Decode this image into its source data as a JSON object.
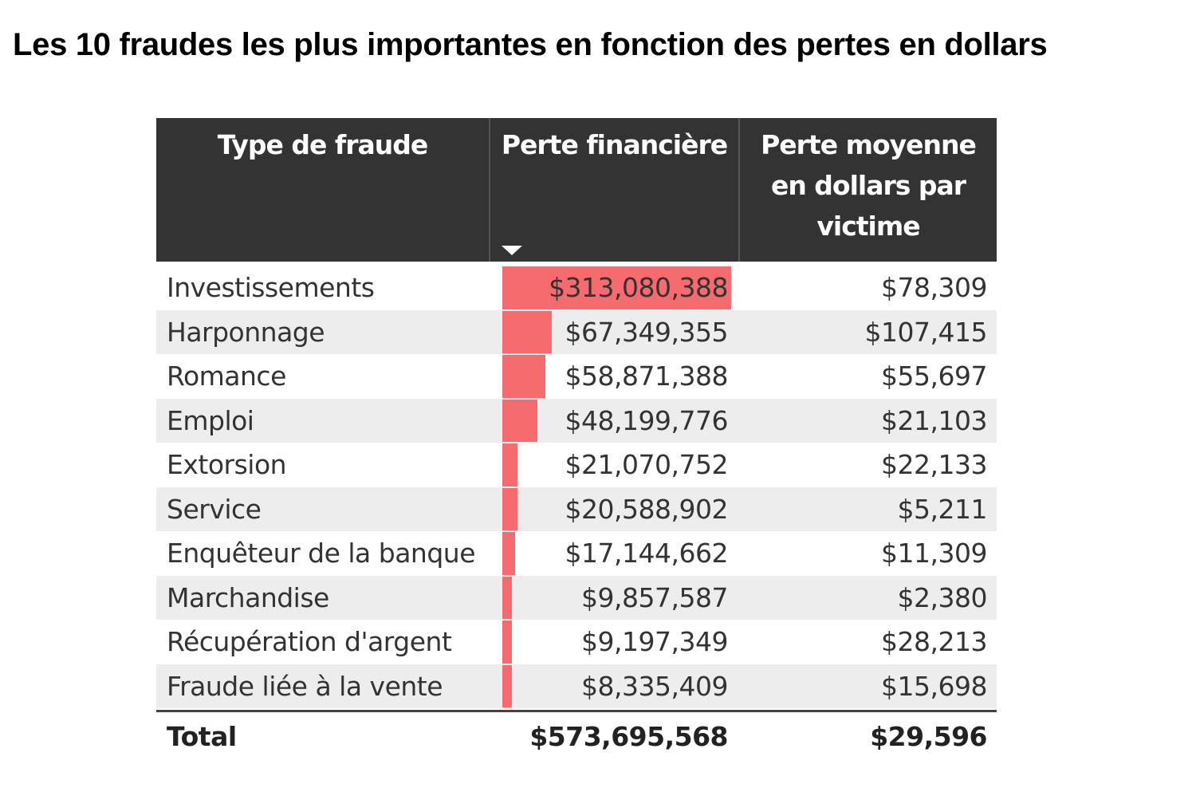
{
  "title": "Les 10 fraudes les plus importantes en fonction des pertes en dollars",
  "chart_data": {
    "type": "table",
    "columns": [
      "Type de fraude",
      "Perte financière",
      "Perte moyenne en dollars par victime"
    ],
    "sort": {
      "column": "Perte financière",
      "direction": "descending"
    },
    "bar_color": "#f66b6e",
    "header_color": "#333333",
    "rows": [
      {
        "type": "Investissements",
        "loss": 313080388,
        "loss_label": "$313,080,388",
        "avg_label": "$78,309"
      },
      {
        "type": "Harponnage",
        "loss": 67349355,
        "loss_label": "$67,349,355",
        "avg_label": "$107,415"
      },
      {
        "type": "Romance",
        "loss": 58871388,
        "loss_label": "$58,871,388",
        "avg_label": "$55,697"
      },
      {
        "type": "Emploi",
        "loss": 48199776,
        "loss_label": "$48,199,776",
        "avg_label": "$21,103"
      },
      {
        "type": "Extorsion",
        "loss": 21070752,
        "loss_label": "$21,070,752",
        "avg_label": "$22,133"
      },
      {
        "type": "Service",
        "loss": 20588902,
        "loss_label": "$20,588,902",
        "avg_label": "$5,211"
      },
      {
        "type": "Enquêteur de la banque",
        "loss": 17144662,
        "loss_label": "$17,144,662",
        "avg_label": "$11,309"
      },
      {
        "type": "Marchandise",
        "loss": 9857587,
        "loss_label": "$9,857,587",
        "avg_label": "$2,380"
      },
      {
        "type": "Récupération d'argent",
        "loss": 9197349,
        "loss_label": "$9,197,349",
        "avg_label": "$28,213"
      },
      {
        "type": "Fraude liée à la vente",
        "loss": 8335409,
        "loss_label": "$8,335,409",
        "avg_label": "$15,698"
      }
    ],
    "total": {
      "label": "Total",
      "loss_label": "$573,695,568",
      "avg_label": "$29,596"
    }
  }
}
